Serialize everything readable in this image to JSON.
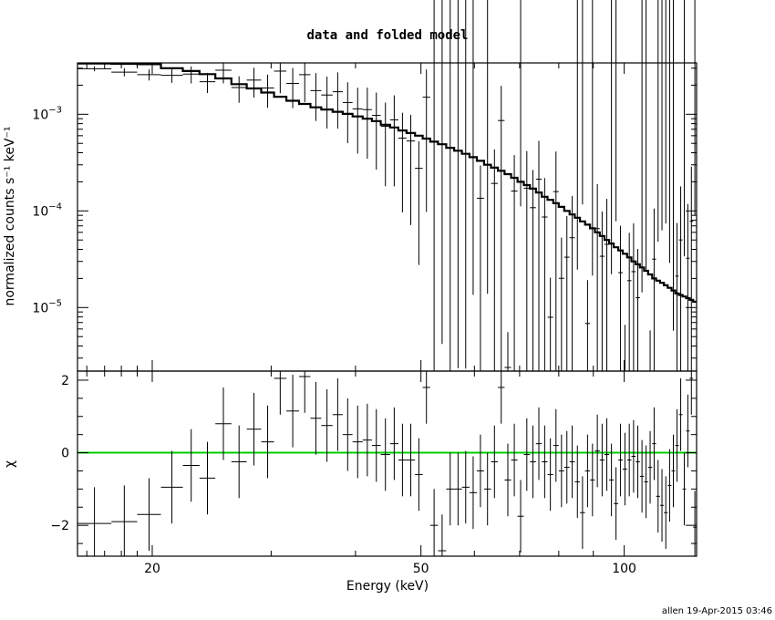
{
  "chart_data": {
    "title": "data and folded model",
    "footer": "allen 19-Apr-2015 03:46",
    "xlabel": "Energy (keV)",
    "xscale": "log",
    "xlim": [
      15.5,
      128
    ],
    "x_tick_labels": [
      "20",
      "50",
      "100"
    ],
    "x_ticks": [
      20,
      50,
      100
    ],
    "panels": [
      {
        "type": "step+errorbar",
        "ylabel": "normalized counts s⁻¹ keV⁻¹",
        "yscale": "log",
        "ylim": [
          2.2e-06,
          0.0034
        ],
        "y_tick_labels": [
          {
            "value": 0.001,
            "base": "10",
            "exp": "−3"
          },
          {
            "value": 0.0001,
            "base": "10",
            "exp": "−4"
          },
          {
            "value": 1e-05,
            "base": "10",
            "exp": "−5"
          }
        ]
      },
      {
        "type": "errorbar",
        "ylabel": "χ",
        "ylim": [
          -2.85,
          2.25
        ],
        "y_ticks": [
          -2,
          0,
          2
        ],
        "y_tick_labels": [
          "−2",
          "0",
          "2"
        ],
        "zero_line_color": "#00cc00"
      }
    ],
    "series": {
      "x_lo": [
        15.5,
        17.4,
        19.0,
        20.6,
        22.2,
        23.5,
        24.8,
        26.2,
        27.6,
        29.0,
        30.3,
        31.6,
        33.0,
        34.3,
        35.6,
        37.0,
        38.3,
        39.6,
        41.0,
        42.3,
        43.6,
        45.0,
        46.3,
        47.6,
        49.0,
        50.3,
        51.6,
        53.0,
        54.5,
        56.0,
        57.5,
        59.0,
        60.5,
        62.0,
        63.5,
        65.0,
        66.5,
        68.0,
        69.5,
        71.0,
        72.5,
        74.0,
        75.5,
        77.0,
        78.5,
        80.0,
        81.5,
        83.0,
        84.5,
        86.0,
        87.5,
        89.0,
        90.5,
        92.0,
        93.5,
        95.0,
        96.5,
        98.0,
        99.5,
        101.0,
        102.5,
        104.0,
        105.5,
        107.0,
        108.5,
        110.0,
        111.5,
        113.0,
        114.5,
        116.0,
        117.5,
        119.0,
        120.5,
        122.0,
        123.5,
        125.0,
        126.5
      ],
      "x_hi": [
        17.4,
        19.0,
        20.6,
        22.2,
        23.5,
        24.8,
        26.2,
        27.6,
        29.0,
        30.3,
        31.6,
        33.0,
        34.3,
        35.6,
        37.0,
        38.3,
        39.6,
        41.0,
        42.3,
        43.6,
        45.0,
        46.3,
        47.6,
        49.0,
        50.3,
        51.6,
        53.0,
        54.5,
        56.0,
        57.5,
        59.0,
        60.5,
        62.0,
        63.5,
        65.0,
        66.5,
        68.0,
        69.5,
        71.0,
        72.5,
        74.0,
        75.5,
        77.0,
        78.5,
        80.0,
        81.5,
        83.0,
        84.5,
        86.0,
        87.5,
        89.0,
        90.5,
        92.0,
        93.5,
        95.0,
        96.5,
        98.0,
        99.5,
        101.0,
        102.5,
        104.0,
        105.5,
        107.0,
        108.5,
        110.0,
        111.5,
        113.0,
        114.5,
        116.0,
        117.5,
        119.0,
        120.5,
        122.0,
        123.5,
        125.0,
        126.5,
        128.0
      ],
      "model": [
        0.00335,
        0.00333,
        0.0033,
        0.003,
        0.0028,
        0.0026,
        0.00235,
        0.00205,
        0.00185,
        0.00168,
        0.00152,
        0.00138,
        0.00128,
        0.00118,
        0.00112,
        0.00106,
        0.00101,
        0.00095,
        0.0009,
        0.00085,
        0.00078,
        0.00073,
        0.00068,
        0.00064,
        0.0006,
        0.00056,
        0.00052,
        0.00049,
        0.00045,
        0.00042,
        0.00039,
        0.00036,
        0.00033,
        0.0003,
        0.00028,
        0.00026,
        0.00024,
        0.00022,
        0.0002,
        0.000185,
        0.00017,
        0.000155,
        0.00014,
        0.00013,
        0.00012,
        0.00011,
        0.0001,
        9.2e-05,
        8.5e-05,
        7.8e-05,
        7.2e-05,
        6.6e-05,
        6e-05,
        5.5e-05,
        5e-05,
        4.6e-05,
        4.2e-05,
        3.9e-05,
        3.6e-05,
        3.3e-05,
        3e-05,
        2.8e-05,
        2.6e-05,
        2.4e-05,
        2.2e-05,
        2e-05,
        1.9e-05,
        1.8e-05,
        1.7e-05,
        1.6e-05,
        1.5e-05,
        1.4e-05,
        1.35e-05,
        1.3e-05,
        1.25e-05,
        1.2e-05,
        1.15e-05
      ],
      "chi": [
        -1.95,
        -1.9,
        -1.7,
        -0.95,
        -0.35,
        -0.7,
        0.8,
        -0.25,
        0.65,
        0.3,
        2.05,
        1.15,
        2.1,
        0.95,
        0.75,
        1.05,
        0.5,
        0.3,
        0.35,
        0.2,
        -0.05,
        0.25,
        -0.2,
        -0.2,
        -0.6,
        1.8,
        -2.0,
        -2.7,
        -1.0,
        -1.0,
        -0.95,
        -1.1,
        -0.5,
        -1.0,
        -0.25,
        1.8,
        -0.75,
        -0.2,
        -1.75,
        -0.05,
        -0.25,
        0.25,
        -0.25,
        -0.6,
        0.2,
        -0.5,
        -0.4,
        -0.25,
        -0.8,
        -1.65,
        -0.5,
        -0.75,
        0.05,
        -0.2,
        -0.05,
        -0.75,
        -1.4,
        -0.2,
        -0.45,
        -0.2,
        -0.1,
        -0.25,
        -0.65,
        -0.8,
        -0.4,
        0.25,
        -1.2,
        -1.45,
        -1.65,
        -0.9,
        -0.5,
        0.2,
        1.05,
        -1.0,
        0.6,
        2.05,
        -2.05
      ],
      "chi_err": 1.0
    }
  }
}
